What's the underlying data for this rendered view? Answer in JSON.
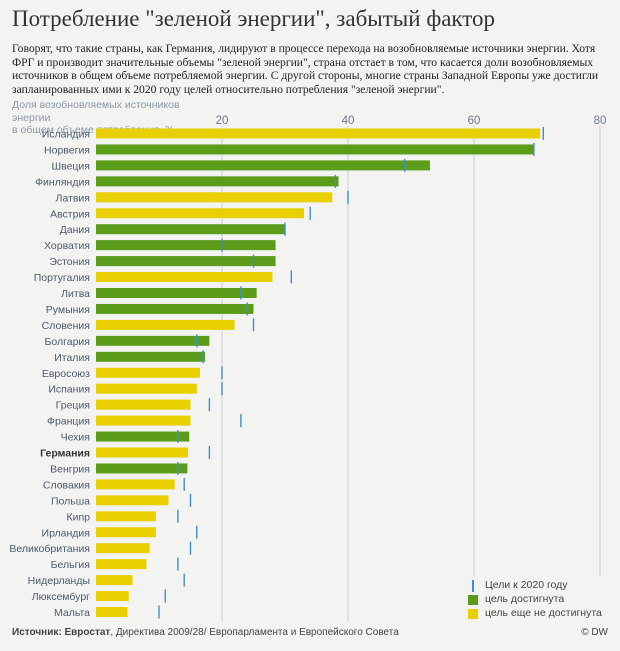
{
  "title": "Потребление \"зеленой энергии\", забытый фактор",
  "intro": "Говорят, что такие страны, как Германия, лидируют в процессе перехода на возобновляемые источники энергии. Хотя ФРГ и производит значительные объемы \"зеленой энергии\", страна отстает в том, что касается доли возобновляемых источников в общем объеме потребляемой энергии. С другой стороны, многие страны Западной Европы уже достигли запланированных ими к 2020 году целей относительно потребления \"зеленой энергии\".",
  "axis_caption_line1": "Доля возобновляемых источников энергии",
  "axis_caption_line2": "в общем объеме потребления, %",
  "legend": {
    "target": "Цели к 2020 году",
    "reached": "цель достигнута",
    "not_reached": "цель еще не достигнута"
  },
  "footer": {
    "source_label": "Источник:",
    "source_bold": "Евростат",
    "source_rest": ", Директива 2009/28/ Европарламента и Европейского Совета",
    "copyright": "© DW"
  },
  "colors": {
    "reached": "#5b9c1a",
    "not_reached": "#e8cf00",
    "target": "#3b8fd0",
    "grid": "#c9cfd6",
    "tick_label": "#6c7a8a",
    "country_label": "#4a5a6c"
  },
  "chart_data": {
    "type": "bar",
    "orientation": "horizontal",
    "xlim": [
      0,
      80
    ],
    "ticks": [
      20,
      40,
      60,
      80
    ],
    "grid": true,
    "legend_position": "bottom-right",
    "highlight": "Германия",
    "countries": [
      {
        "name": "Исландия",
        "value": 70.5,
        "target": 71,
        "reached": false
      },
      {
        "name": "Норвегия",
        "value": 69.5,
        "target": 69.5,
        "reached": true
      },
      {
        "name": "Швеция",
        "value": 53,
        "target": 49,
        "reached": true
      },
      {
        "name": "Финляндия",
        "value": 38.5,
        "target": 38,
        "reached": true
      },
      {
        "name": "Латвия",
        "value": 37.5,
        "target": 40,
        "reached": false
      },
      {
        "name": "Австрия",
        "value": 33,
        "target": 34,
        "reached": false
      },
      {
        "name": "Дания",
        "value": 30,
        "target": 30,
        "reached": true
      },
      {
        "name": "Хорватия",
        "value": 28.5,
        "target": 20,
        "reached": true
      },
      {
        "name": "Эстония",
        "value": 28.5,
        "target": 25,
        "reached": true
      },
      {
        "name": "Португалия",
        "value": 28,
        "target": 31,
        "reached": false
      },
      {
        "name": "Литва",
        "value": 25.5,
        "target": 23,
        "reached": true
      },
      {
        "name": "Румыния",
        "value": 25,
        "target": 24,
        "reached": true
      },
      {
        "name": "Словения",
        "value": 22,
        "target": 25,
        "reached": false
      },
      {
        "name": "Болгария",
        "value": 18,
        "target": 16,
        "reached": true
      },
      {
        "name": "Италия",
        "value": 17.3,
        "target": 17,
        "reached": true
      },
      {
        "name": "Евросоюз",
        "value": 16.5,
        "target": 20,
        "reached": false
      },
      {
        "name": "Испания",
        "value": 16,
        "target": 20,
        "reached": false
      },
      {
        "name": "Греция",
        "value": 15,
        "target": 18,
        "reached": false
      },
      {
        "name": "Франция",
        "value": 15,
        "target": 23,
        "reached": false
      },
      {
        "name": "Чехия",
        "value": 14.8,
        "target": 13,
        "reached": true
      },
      {
        "name": "Германия",
        "value": 14.6,
        "target": 18,
        "reached": false
      },
      {
        "name": "Венгрия",
        "value": 14.5,
        "target": 13,
        "reached": true
      },
      {
        "name": "Словакия",
        "value": 12.5,
        "target": 14,
        "reached": false
      },
      {
        "name": "Польша",
        "value": 11.5,
        "target": 15,
        "reached": false
      },
      {
        "name": "Кипр",
        "value": 9.5,
        "target": 13,
        "reached": false
      },
      {
        "name": "Ирландия",
        "value": 9.5,
        "target": 16,
        "reached": false
      },
      {
        "name": "Великобритания",
        "value": 8.5,
        "target": 15,
        "reached": false
      },
      {
        "name": "Бельгия",
        "value": 8,
        "target": 13,
        "reached": false
      },
      {
        "name": "Нидерланды",
        "value": 5.8,
        "target": 14,
        "reached": false
      },
      {
        "name": "Люксембург",
        "value": 5.2,
        "target": 11,
        "reached": false
      },
      {
        "name": "Мальта",
        "value": 5,
        "target": 10,
        "reached": false
      }
    ]
  }
}
